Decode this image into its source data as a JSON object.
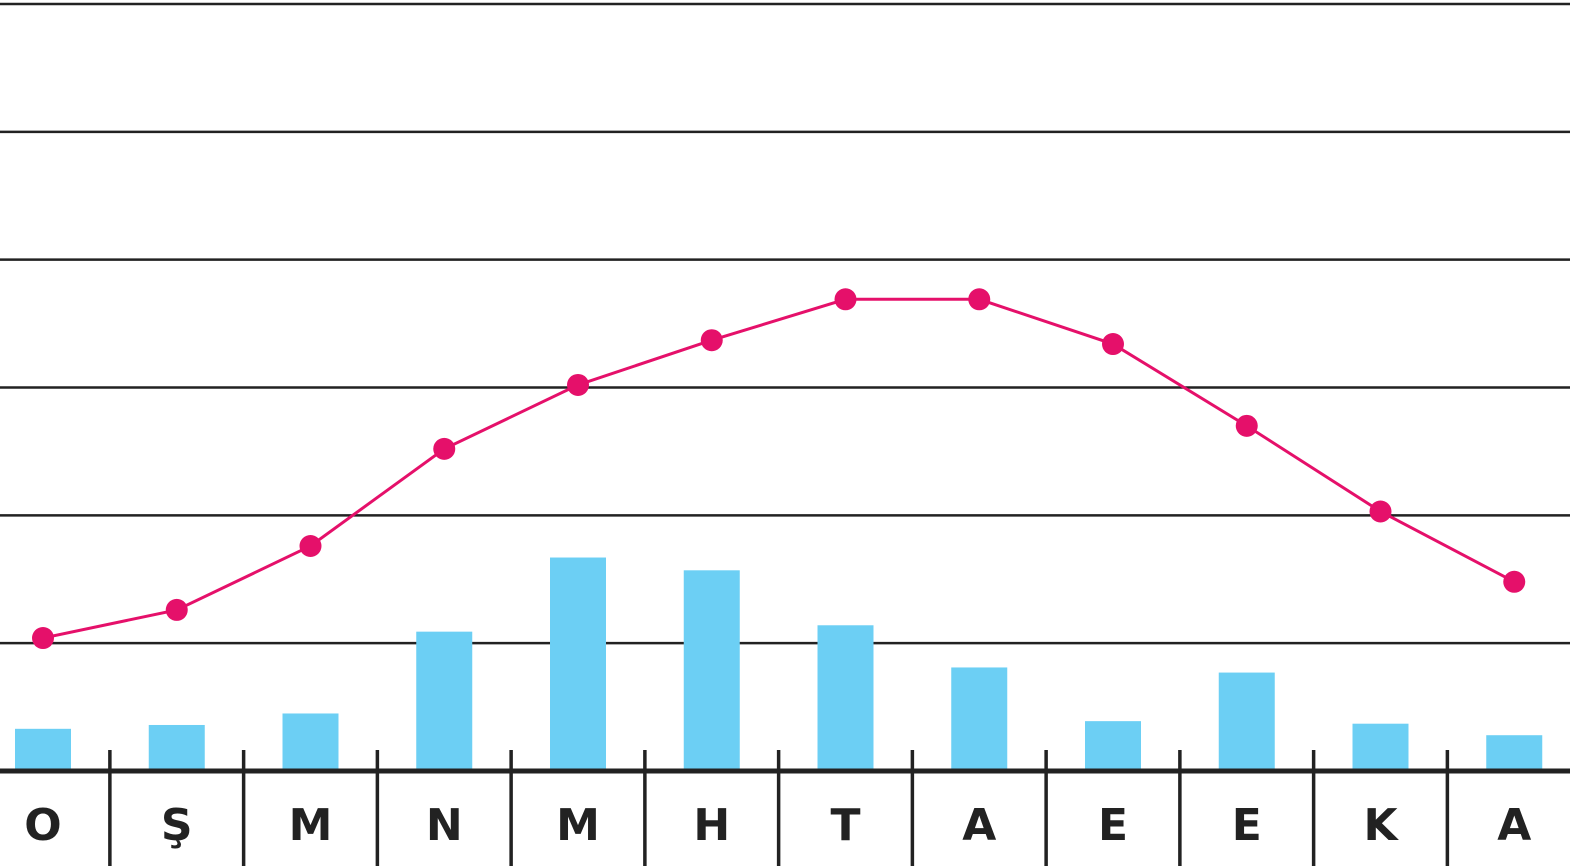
{
  "chart_data": {
    "type": "bar-line",
    "categories": [
      "O",
      "Ş",
      "M",
      "N",
      "M",
      "H",
      "T",
      "A",
      "E",
      "E",
      "K",
      "A"
    ],
    "series": [
      {
        "type": "bar",
        "color": "#6ccff4",
        "values": [
          3.3,
          3.6,
          4.5,
          10.9,
          16.7,
          15.7,
          11.4,
          8.1,
          3.9,
          7.7,
          3.7,
          2.8
        ]
      },
      {
        "type": "line",
        "color": "#e5106a",
        "values": [
          10.4,
          12.6,
          17.6,
          25.2,
          30.2,
          33.7,
          36.9,
          36.9,
          33.4,
          27.0,
          20.3,
          14.8
        ]
      }
    ],
    "ylim": [
      0,
      60
    ],
    "yticks": [
      0,
      10,
      20,
      30,
      40,
      50,
      60
    ],
    "grid": true
  }
}
